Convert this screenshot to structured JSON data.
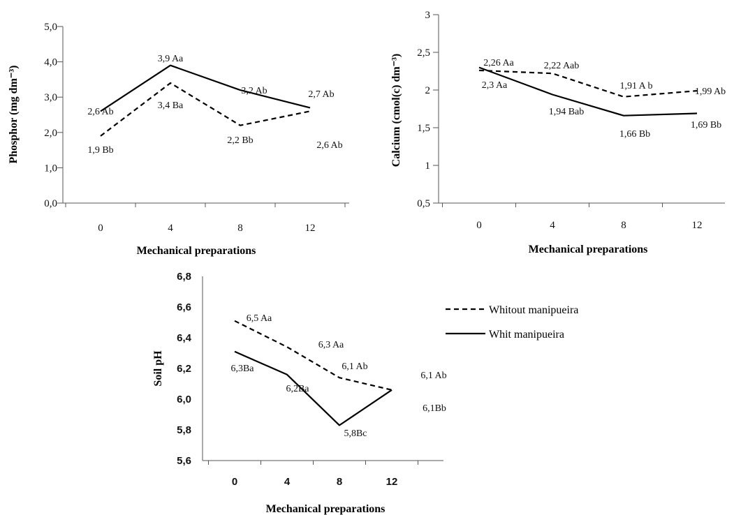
{
  "legend": {
    "items": [
      {
        "label": "Whitout manipueira",
        "dash": true
      },
      {
        "label": "Whit manipueira",
        "dash": false
      }
    ]
  },
  "chart_data": [
    {
      "id": "phosphor",
      "type": "line",
      "categories": [
        "0",
        "4",
        "8",
        "12"
      ],
      "ylabel": "Phosphor (mg dm⁻³)",
      "xlabel": "Mechanical preparations",
      "ylim": [
        0,
        5
      ],
      "yticks": [
        "0,0",
        "1,0",
        "2,0",
        "3,0",
        "4,0",
        "5,0"
      ],
      "series": [
        {
          "dash": true,
          "values": [
            1.9,
            3.4,
            2.2,
            2.6
          ],
          "labels": [
            "1,9 Bb",
            "3,4 Ba",
            "2,2 Bb",
            "2,6 Ab"
          ]
        },
        {
          "dash": false,
          "values": [
            2.6,
            3.9,
            3.2,
            2.7
          ],
          "labels": [
            "2,6 Ab",
            "3,9 Aa",
            "3,2 Ab",
            "2,7 Ab"
          ]
        }
      ]
    },
    {
      "id": "calcium",
      "type": "line",
      "categories": [
        "0",
        "4",
        "8",
        "12"
      ],
      "ylabel": "Calcium  (cmol(c) dm⁻³)",
      "xlabel": "Mechanical preparations",
      "ylim": [
        0.5,
        3
      ],
      "yticks": [
        "0,5",
        "1",
        "1,5",
        "2",
        "2,5",
        "3"
      ],
      "series": [
        {
          "dash": true,
          "values": [
            2.26,
            2.22,
            1.91,
            1.99
          ],
          "labels": [
            "2,26 Aa",
            "2,22 Aab",
            "1,91 A b",
            "1,99  Ab"
          ]
        },
        {
          "dash": false,
          "values": [
            2.3,
            1.94,
            1.66,
            1.69
          ],
          "labels": [
            "2,3 Aa",
            "1,94 Bab",
            "1,66 Bb",
            "1,69 Bb"
          ]
        }
      ]
    },
    {
      "id": "ph",
      "type": "line",
      "categories": [
        "0",
        "4",
        "8",
        "12"
      ],
      "ylabel": "Soil pH",
      "xlabel": "Mechanical preparations",
      "ylim": [
        5.6,
        6.8
      ],
      "yticks": [
        "5,6",
        "5,8",
        "6,0",
        "6,2",
        "6,4",
        "6,6",
        "6,8"
      ],
      "series": [
        {
          "dash": true,
          "values": [
            6.51,
            6.34,
            6.14,
            6.06
          ],
          "labels": [
            "6,5 Aa",
            "6,3 Aa",
            "6,1 Ab",
            "6,1 Ab"
          ]
        },
        {
          "dash": false,
          "values": [
            6.31,
            6.16,
            5.83,
            6.06
          ],
          "labels": [
            "6,3Ba",
            "6,2Ba",
            "5,8Bc",
            "6,1Bb"
          ]
        }
      ]
    }
  ]
}
